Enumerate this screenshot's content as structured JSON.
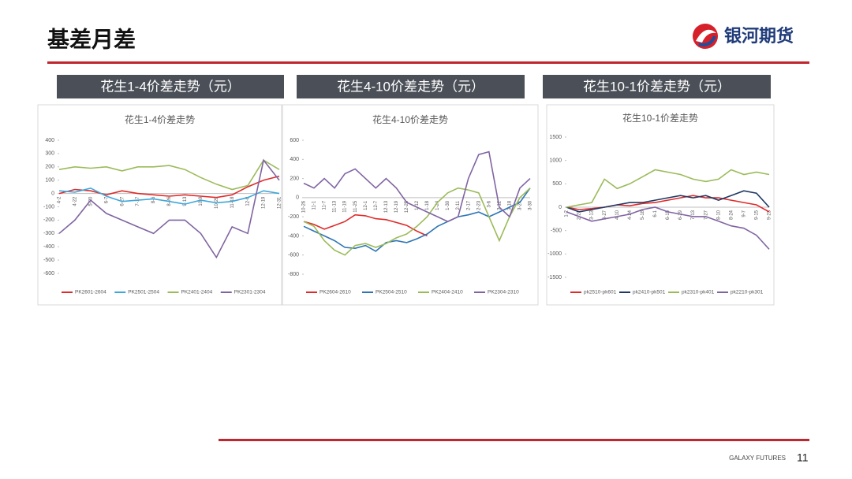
{
  "header": {
    "title": "基差月差",
    "logo": "银河期货"
  },
  "headings": [
    "花生1-4价差走势（元）",
    "花生4-10价差走势（元）",
    "花生10-1价差走势（元）"
  ],
  "chart_data": [
    {
      "type": "line",
      "title": "花生1-4价差走势",
      "categories": [
        "4-2",
        "4-22",
        "5-20",
        "6-7",
        "6-27",
        "7-17",
        "8-6",
        "8-26",
        "9-13",
        "10-9",
        "10-29",
        "11-18",
        "12-8",
        "12-19",
        "12-31"
      ],
      "ylim": [
        -600,
        400
      ],
      "yticks": [
        -600,
        -500,
        -400,
        -300,
        -200,
        -100,
        0,
        100,
        200,
        300,
        400
      ],
      "legend": "bottom",
      "series": [
        {
          "name": "PK2601-2604",
          "color": "#e02b2b",
          "values": [
            0,
            30,
            20,
            -10,
            20,
            0,
            -10,
            -20,
            -10,
            -20,
            -30,
            -10,
            50,
            100,
            130
          ]
        },
        {
          "name": "PK2501-2504",
          "color": "#3ea7dc",
          "values": [
            20,
            10,
            40,
            -20,
            -60,
            -50,
            -40,
            -60,
            -80,
            -50,
            -70,
            -60,
            -30,
            20,
            0
          ]
        },
        {
          "name": "PK2401-2404",
          "color": "#9bbb59",
          "values": [
            180,
            200,
            190,
            200,
            170,
            200,
            200,
            210,
            180,
            120,
            70,
            30,
            60,
            250,
            180
          ]
        },
        {
          "name": "PK2301-2304",
          "color": "#8064a2",
          "values": [
            -300,
            -200,
            -50,
            -150,
            -200,
            -250,
            -300,
            -200,
            -200,
            -300,
            -480,
            -250,
            -300,
            250,
            100
          ]
        }
      ]
    },
    {
      "type": "line",
      "title": "花生4-10价差走势",
      "categories": [
        "10-26",
        "11-1",
        "11-7",
        "11-13",
        "11-19",
        "11-25",
        "12-1",
        "12-7",
        "12-13",
        "12-19",
        "12-25",
        "1-12",
        "1-18",
        "1-24",
        "1-30",
        "2-11",
        "2-17",
        "2-23",
        "3-6",
        "3-12",
        "3-18",
        "3-24",
        "3-30"
      ],
      "ylim": [
        -800,
        600
      ],
      "yticks": [
        -800,
        -600,
        -400,
        -200,
        0,
        200,
        400,
        600
      ],
      "legend": "bottom",
      "series": [
        {
          "name": "PK2604-2610",
          "color": "#e02b2b",
          "values": [
            -250,
            -280,
            -330,
            -290,
            -250,
            -180,
            -190,
            -220,
            -230,
            -260,
            -290,
            -350,
            -400,
            null,
            null,
            null,
            null,
            null,
            null,
            null,
            null,
            null,
            null
          ]
        },
        {
          "name": "PK2504-2510",
          "color": "#2e75b6",
          "values": [
            -300,
            -350,
            -400,
            -450,
            -520,
            -530,
            -500,
            -560,
            -470,
            -450,
            -470,
            -430,
            -380,
            -300,
            -250,
            -200,
            -180,
            -150,
            -200,
            -150,
            -100,
            -50,
            100
          ]
        },
        {
          "name": "PK2404-2410",
          "color": "#9bbb59",
          "values": [
            -250,
            -300,
            -450,
            -550,
            -600,
            -500,
            -480,
            -520,
            -480,
            -420,
            -380,
            -300,
            -200,
            -50,
            50,
            100,
            80,
            50,
            -200,
            -450,
            -200,
            0,
            100
          ]
        },
        {
          "name": "PK2304-2310",
          "color": "#8064a2",
          "values": [
            150,
            100,
            200,
            100,
            250,
            300,
            200,
            100,
            200,
            100,
            -50,
            -100,
            -150,
            -200,
            -250,
            -200,
            200,
            450,
            480,
            -100,
            -200,
            100,
            200
          ]
        }
      ]
    },
    {
      "type": "line",
      "title": "花生10-1价差走势",
      "categories": [
        "1-2",
        "2-27",
        "3-13",
        "3-27",
        "4-10",
        "4-24",
        "5-18",
        "6-1",
        "6-15",
        "6-29",
        "7-13",
        "7-27",
        "8-10",
        "8-24",
        "9-7",
        "9-15",
        "9-23"
      ],
      "ylim": [
        -1500,
        1500
      ],
      "yticks": [
        -1500,
        -1000,
        -500,
        0,
        500,
        1000,
        1500
      ],
      "legend": "bottom",
      "series": [
        {
          "name": "pk2510-pk601",
          "color": "#e02b2b",
          "values": [
            0,
            -50,
            -30,
            0,
            50,
            30,
            80,
            100,
            150,
            200,
            250,
            200,
            200,
            150,
            100,
            50,
            -100
          ]
        },
        {
          "name": "pk2410-pk501",
          "color": "#1f3864",
          "values": [
            0,
            -100,
            -50,
            0,
            50,
            100,
            100,
            150,
            200,
            250,
            200,
            250,
            150,
            250,
            350,
            300,
            0
          ]
        },
        {
          "name": "pk2310-pk401",
          "color": "#9bbb59",
          "values": [
            0,
            50,
            100,
            600,
            400,
            500,
            650,
            800,
            750,
            700,
            600,
            550,
            600,
            800,
            700,
            750,
            700
          ]
        },
        {
          "name": "pk2210-pk301",
          "color": "#8064a2",
          "values": [
            -100,
            -200,
            -300,
            -250,
            -200,
            -150,
            -50,
            0,
            -100,
            -150,
            -200,
            -200,
            -300,
            -400,
            -450,
            -600,
            -900
          ]
        }
      ]
    }
  ],
  "footer": {
    "brand": "GALAXY FUTURES",
    "page": 11
  }
}
